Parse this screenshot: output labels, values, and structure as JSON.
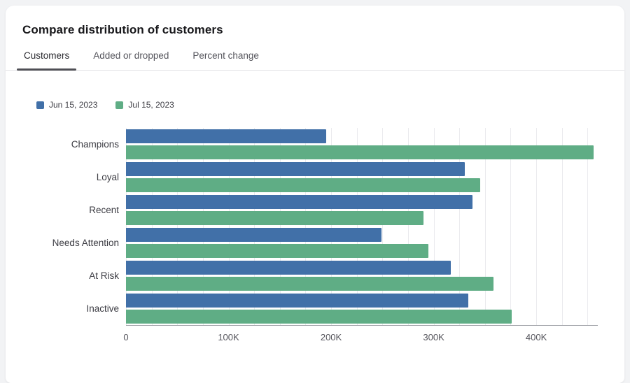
{
  "card": {
    "title": "Compare distribution of customers",
    "tabs": [
      {
        "label": "Customers",
        "active": true
      },
      {
        "label": "Added or dropped",
        "active": false
      },
      {
        "label": "Percent change",
        "active": false
      }
    ]
  },
  "chart_data": {
    "type": "bar",
    "orientation": "horizontal",
    "title": "Compare distribution of customers",
    "categories": [
      "Champions",
      "Loyal",
      "Recent",
      "Needs Attention",
      "At Risk",
      "Inactive"
    ],
    "series": [
      {
        "name": "Jun 15, 2023",
        "color": "#4170a8",
        "values": [
          195000,
          330000,
          338000,
          249000,
          317000,
          334000
        ]
      },
      {
        "name": "Jul 15, 2023",
        "color": "#5fad85",
        "values": [
          456000,
          345000,
          290000,
          295000,
          358000,
          376000
        ]
      }
    ],
    "xlim": [
      0,
      460000
    ],
    "grid_step": 25000,
    "grid": true,
    "legend_position": "top-left",
    "xticks": [
      {
        "value": 0,
        "label": "0"
      },
      {
        "value": 100000,
        "label": "100K"
      },
      {
        "value": 200000,
        "label": "200K"
      },
      {
        "value": 300000,
        "label": "300K"
      },
      {
        "value": 400000,
        "label": "400K"
      }
    ]
  }
}
